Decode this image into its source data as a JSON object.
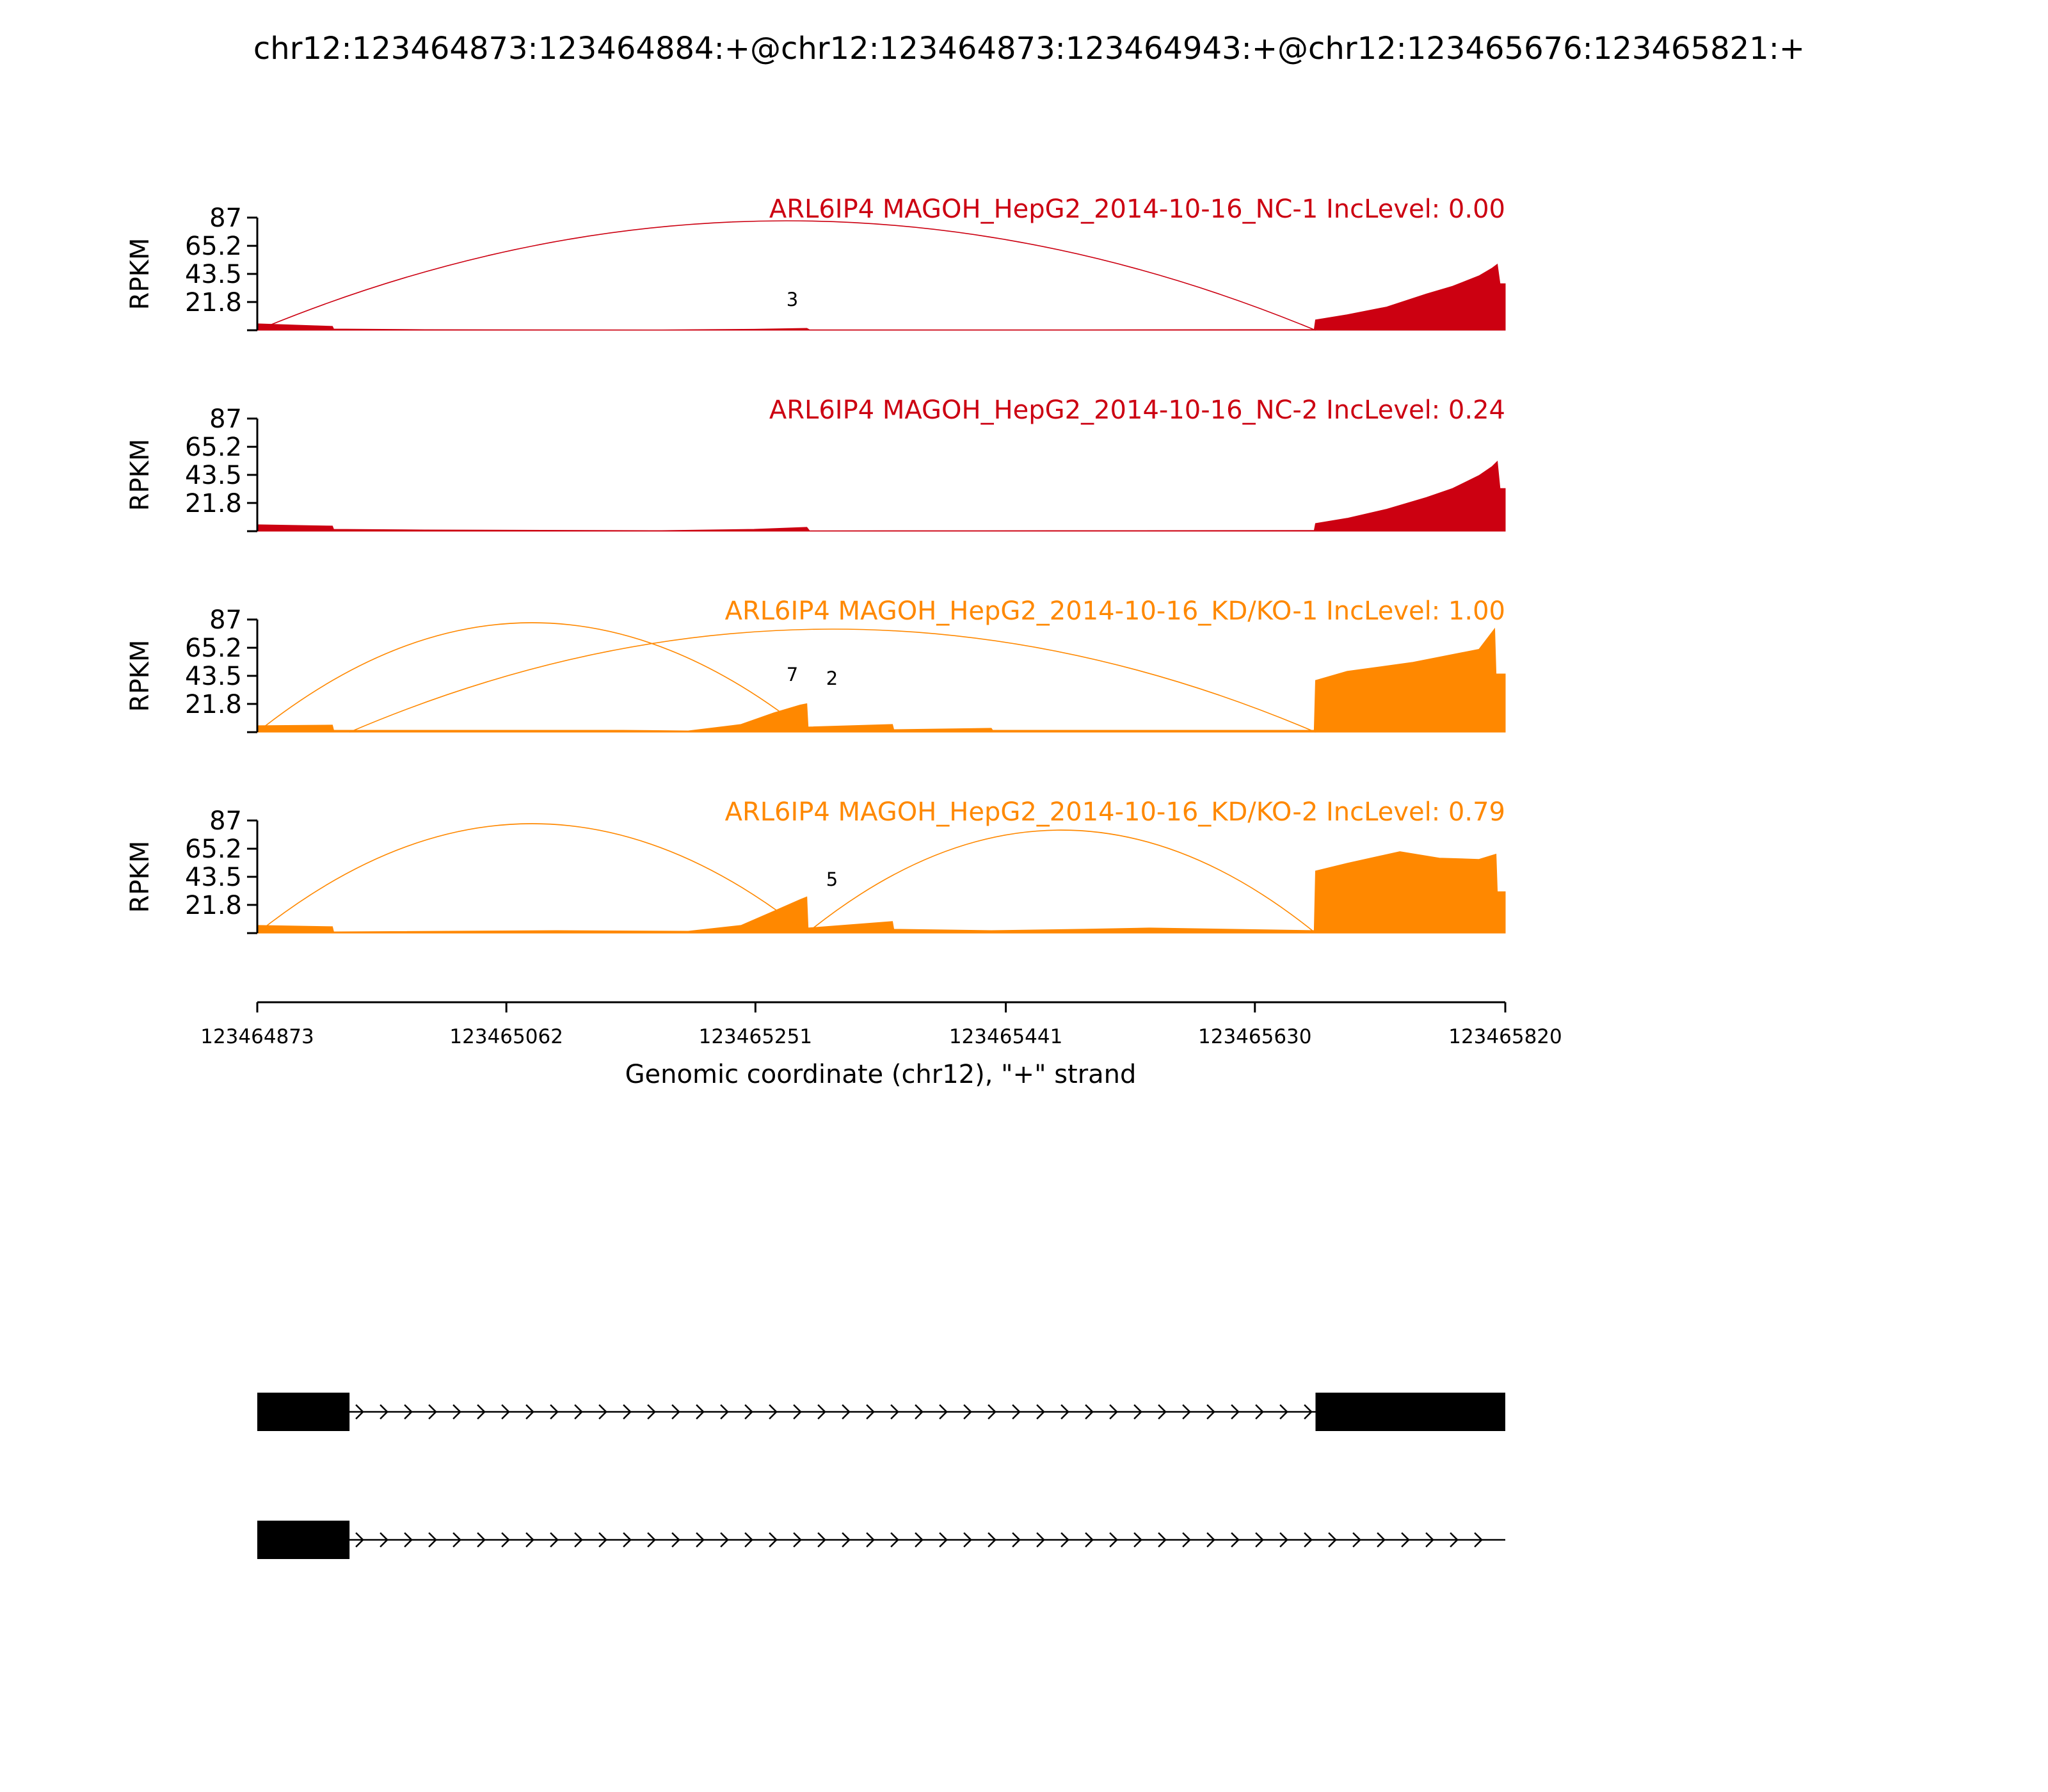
{
  "chart_data": {
    "type": "area",
    "title": "chr12:123464873:123464884:+@chr12:123464873:123464943:+@chr12:123465676:123465821:+",
    "ylabel": "RPKM",
    "xlabel": "Genomic coordinate (chr12), \"+\" strand",
    "xlim": [
      123464873,
      123465820
    ],
    "x_ticks": [
      "123464873",
      "123465062",
      "123465251",
      "123465441",
      "123465630",
      "123465820"
    ],
    "y_ticks": [
      "87",
      "65.2",
      "43.5",
      "21.8"
    ],
    "ylim": [
      0,
      87
    ],
    "colors": {
      "NC": "#cc0011",
      "KD": "#ff8800"
    },
    "series": [
      {
        "name": "ARL6IP4 MAGOH_HepG2_2014-10-16_NC-1 IncLevel: 0.00",
        "color": "#cc0011",
        "profile": [
          [
            123464873,
            5
          ],
          [
            123464930,
            3
          ],
          [
            123464931,
            1
          ],
          [
            123465000,
            0.5
          ],
          [
            123465180,
            0.3
          ],
          [
            123465250,
            0.8
          ],
          [
            123465290,
            1.5
          ],
          [
            123465292,
            0.4
          ],
          [
            123465500,
            0.4
          ],
          [
            123465675,
            0.6
          ],
          [
            123465676,
            8
          ],
          [
            123465700,
            12
          ],
          [
            123465730,
            18
          ],
          [
            123465760,
            28
          ],
          [
            123465780,
            34
          ],
          [
            123465800,
            42
          ],
          [
            123465810,
            48
          ],
          [
            123465814,
            51
          ],
          [
            123465816,
            36
          ],
          [
            123465820,
            36
          ]
        ],
        "junctions": [
          {
            "from": 123464873,
            "to": 123465676,
            "label": "3"
          }
        ]
      },
      {
        "name": "ARL6IP4 MAGOH_HepG2_2014-10-16_NC-2 IncLevel: 0.24",
        "color": "#cc0011",
        "profile": [
          [
            123464873,
            5
          ],
          [
            123464930,
            4
          ],
          [
            123464931,
            1.5
          ],
          [
            123465000,
            1
          ],
          [
            123465180,
            0.5
          ],
          [
            123465250,
            1.5
          ],
          [
            123465290,
            3
          ],
          [
            123465292,
            0.4
          ],
          [
            123465500,
            0.5
          ],
          [
            123465675,
            0.6
          ],
          [
            123465676,
            6
          ],
          [
            123465700,
            10
          ],
          [
            123465730,
            17
          ],
          [
            123465760,
            26
          ],
          [
            123465780,
            33
          ],
          [
            123465800,
            43
          ],
          [
            123465810,
            50
          ],
          [
            123465814,
            54
          ],
          [
            123465816,
            33
          ],
          [
            123465820,
            33
          ]
        ],
        "junctions": []
      },
      {
        "name": "ARL6IP4 MAGOH_HepG2_2014-10-16_KD/KO-1 IncLevel: 1.00",
        "color": "#ff8800",
        "profile": [
          [
            123464873,
            5
          ],
          [
            123464930,
            5.5
          ],
          [
            123464931,
            1.5
          ],
          [
            123465000,
            1.5
          ],
          [
            123465150,
            1.5
          ],
          [
            123465200,
            1
          ],
          [
            123465240,
            6
          ],
          [
            123465265,
            15
          ],
          [
            123465285,
            21
          ],
          [
            123465290,
            22
          ],
          [
            123465291,
            4
          ],
          [
            123465355,
            6
          ],
          [
            123465356,
            2
          ],
          [
            123465430,
            3
          ],
          [
            123465431,
            1.5
          ],
          [
            123465675,
            1.5
          ],
          [
            123465676,
            40
          ],
          [
            123465700,
            47
          ],
          [
            123465750,
            54
          ],
          [
            123465800,
            64
          ],
          [
            123465812,
            80
          ],
          [
            123465813,
            45
          ],
          [
            123465820,
            45
          ]
        ],
        "junctions": [
          {
            "from": 123464873,
            "to": 123465290,
            "label": "7"
          },
          {
            "from": 123464943,
            "to": 123465676,
            "label": "2"
          }
        ]
      },
      {
        "name": "ARL6IP4 MAGOH_HepG2_2014-10-16_KD/KO-2 IncLevel: 0.79",
        "color": "#ff8800",
        "profile": [
          [
            123464873,
            6
          ],
          [
            123464930,
            5
          ],
          [
            123464931,
            1
          ],
          [
            123465100,
            2
          ],
          [
            123465200,
            1.5
          ],
          [
            123465240,
            6
          ],
          [
            123465265,
            17
          ],
          [
            123465285,
            26
          ],
          [
            123465290,
            28
          ],
          [
            123465291,
            4
          ],
          [
            123465355,
            9
          ],
          [
            123465356,
            3
          ],
          [
            123465430,
            2
          ],
          [
            123465500,
            3
          ],
          [
            123465550,
            4
          ],
          [
            123465675,
            2
          ],
          [
            123465676,
            48
          ],
          [
            123465700,
            54
          ],
          [
            123465740,
            63
          ],
          [
            123465770,
            58
          ],
          [
            123465800,
            57
          ],
          [
            123465813,
            61
          ],
          [
            123465814,
            32
          ],
          [
            123465820,
            32
          ]
        ],
        "junctions": [
          {
            "from": 123464873,
            "to": 123465290,
            "label": ""
          },
          {
            "from": 123465290,
            "to": 123465676,
            "label": "5"
          }
        ]
      }
    ],
    "isoforms": [
      {
        "exons": [
          [
            123464873,
            123464943
          ],
          [
            123465676,
            123465820
          ]
        ]
      },
      {
        "exons": [
          [
            123464873,
            123464943
          ]
        ]
      }
    ]
  }
}
